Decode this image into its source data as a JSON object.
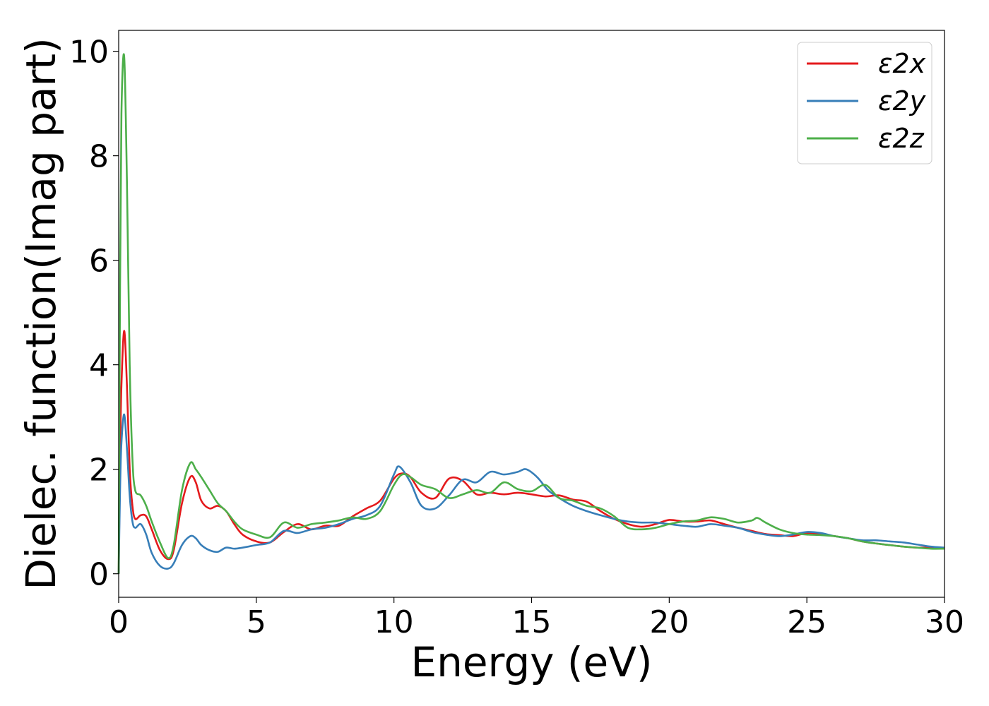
{
  "chart_data": {
    "type": "line",
    "title": "",
    "xlabel": "Energy (eV)",
    "ylabel": "Dielec. function(Imag part)",
    "xlim": [
      0,
      30
    ],
    "ylim": [
      -0.45,
      10.4
    ],
    "xticks": [
      0,
      5,
      10,
      15,
      20,
      25,
      30
    ],
    "yticks": [
      0,
      2,
      4,
      6,
      8,
      10
    ],
    "grid": false,
    "legend_position": "top-right",
    "series": [
      {
        "name": "ε2x",
        "color": "#e41a1c",
        "x": [
          0,
          0.05,
          0.1,
          0.2,
          0.3,
          0.4,
          0.5,
          0.6,
          0.8,
          1.0,
          1.2,
          1.5,
          1.8,
          2.0,
          2.3,
          2.6,
          2.8,
          3.0,
          3.3,
          3.6,
          3.9,
          4.2,
          4.5,
          5.0,
          5.5,
          6.0,
          6.5,
          7.0,
          7.5,
          8.0,
          8.5,
          9.0,
          9.5,
          10.0,
          10.3,
          10.6,
          11.0,
          11.5,
          12.0,
          12.5,
          13.0,
          13.5,
          14.0,
          14.5,
          15.0,
          15.5,
          16.0,
          16.5,
          17.0,
          17.5,
          18.0,
          18.5,
          19.0,
          19.5,
          20.0,
          20.5,
          21.0,
          21.5,
          22.0,
          22.5,
          23.0,
          23.5,
          24.0,
          24.5,
          25.0,
          25.5,
          26.0,
          26.5,
          27.0,
          27.5,
          28.0,
          28.5,
          29.0,
          29.5,
          30.0
        ],
        "values": [
          0.0,
          2.2,
          3.6,
          4.65,
          3.6,
          2.0,
          1.3,
          1.05,
          1.12,
          1.1,
          0.85,
          0.45,
          0.28,
          0.45,
          1.35,
          1.85,
          1.75,
          1.4,
          1.25,
          1.3,
          1.2,
          0.95,
          0.75,
          0.62,
          0.6,
          0.8,
          0.95,
          0.85,
          0.92,
          0.92,
          1.1,
          1.25,
          1.4,
          1.82,
          1.92,
          1.85,
          1.55,
          1.45,
          1.82,
          1.78,
          1.52,
          1.55,
          1.52,
          1.55,
          1.52,
          1.48,
          1.5,
          1.42,
          1.38,
          1.2,
          1.05,
          0.95,
          0.9,
          0.95,
          1.03,
          1.0,
          1.0,
          1.02,
          0.95,
          0.88,
          0.82,
          0.76,
          0.74,
          0.72,
          0.78,
          0.76,
          0.72,
          0.68,
          0.62,
          0.58,
          0.55,
          0.52,
          0.5,
          0.5,
          0.48
        ]
      },
      {
        "name": "ε2y",
        "color": "#377eb8",
        "x": [
          0,
          0.05,
          0.1,
          0.2,
          0.3,
          0.4,
          0.5,
          0.6,
          0.8,
          1.0,
          1.2,
          1.5,
          1.8,
          2.0,
          2.3,
          2.6,
          2.8,
          3.0,
          3.3,
          3.6,
          3.9,
          4.2,
          4.5,
          5.0,
          5.5,
          6.0,
          6.5,
          7.0,
          7.5,
          8.0,
          8.5,
          9.0,
          9.5,
          10.0,
          10.2,
          10.6,
          11.0,
          11.5,
          12.0,
          12.5,
          13.0,
          13.5,
          14.0,
          14.5,
          14.8,
          15.2,
          15.6,
          16.0,
          16.5,
          17.0,
          17.5,
          18.0,
          18.5,
          19.0,
          19.5,
          20.0,
          20.5,
          21.0,
          21.5,
          22.0,
          22.5,
          23.0,
          23.5,
          24.0,
          24.5,
          25.0,
          25.5,
          26.0,
          26.5,
          27.0,
          27.5,
          28.0,
          28.5,
          29.0,
          29.5,
          30.0
        ],
        "values": [
          0.0,
          1.6,
          2.5,
          3.05,
          2.4,
          1.5,
          1.0,
          0.88,
          0.95,
          0.75,
          0.4,
          0.15,
          0.1,
          0.2,
          0.55,
          0.72,
          0.68,
          0.55,
          0.45,
          0.42,
          0.5,
          0.48,
          0.5,
          0.55,
          0.6,
          0.82,
          0.78,
          0.85,
          0.88,
          0.95,
          1.05,
          1.12,
          1.3,
          1.9,
          2.05,
          1.75,
          1.3,
          1.25,
          1.5,
          1.8,
          1.75,
          1.95,
          1.9,
          1.95,
          2.0,
          1.85,
          1.6,
          1.45,
          1.3,
          1.2,
          1.12,
          1.05,
          1.0,
          0.98,
          0.98,
          0.95,
          0.92,
          0.9,
          0.95,
          0.92,
          0.88,
          0.8,
          0.75,
          0.72,
          0.75,
          0.8,
          0.78,
          0.72,
          0.68,
          0.64,
          0.64,
          0.62,
          0.6,
          0.56,
          0.52,
          0.5
        ]
      },
      {
        "name": "ε2z",
        "color": "#4daf4a",
        "x": [
          0,
          0.05,
          0.1,
          0.2,
          0.3,
          0.4,
          0.5,
          0.6,
          0.8,
          1.0,
          1.2,
          1.5,
          1.8,
          2.0,
          2.3,
          2.6,
          2.8,
          3.0,
          3.3,
          3.6,
          3.9,
          4.2,
          4.5,
          5.0,
          5.5,
          6.0,
          6.5,
          7.0,
          7.5,
          8.0,
          8.5,
          9.0,
          9.5,
          10.0,
          10.3,
          10.6,
          11.0,
          11.5,
          12.0,
          12.5,
          13.0,
          13.5,
          14.0,
          14.5,
          15.0,
          15.5,
          16.0,
          16.5,
          17.0,
          17.5,
          18.0,
          18.5,
          19.0,
          19.5,
          20.0,
          20.5,
          21.0,
          21.5,
          22.0,
          22.5,
          23.0,
          23.2,
          23.5,
          24.0,
          24.5,
          25.0,
          25.5,
          26.0,
          26.5,
          27.0,
          27.5,
          28.0,
          28.5,
          29.0,
          29.5,
          30.0
        ],
        "values": [
          0.0,
          5.5,
          8.8,
          9.9,
          7.5,
          4.0,
          2.2,
          1.6,
          1.5,
          1.3,
          1.0,
          0.6,
          0.3,
          0.55,
          1.6,
          2.12,
          2.0,
          1.85,
          1.6,
          1.35,
          1.2,
          1.0,
          0.85,
          0.75,
          0.7,
          0.98,
          0.88,
          0.95,
          0.98,
          1.02,
          1.08,
          1.05,
          1.2,
          1.7,
          1.9,
          1.85,
          1.7,
          1.62,
          1.45,
          1.52,
          1.6,
          1.55,
          1.75,
          1.62,
          1.58,
          1.7,
          1.45,
          1.4,
          1.3,
          1.25,
          1.1,
          0.88,
          0.85,
          0.88,
          0.95,
          1.0,
          1.02,
          1.08,
          1.05,
          0.98,
          1.02,
          1.07,
          0.98,
          0.85,
          0.78,
          0.75,
          0.74,
          0.72,
          0.68,
          0.62,
          0.58,
          0.55,
          0.52,
          0.5,
          0.48,
          0.48
        ]
      }
    ]
  }
}
